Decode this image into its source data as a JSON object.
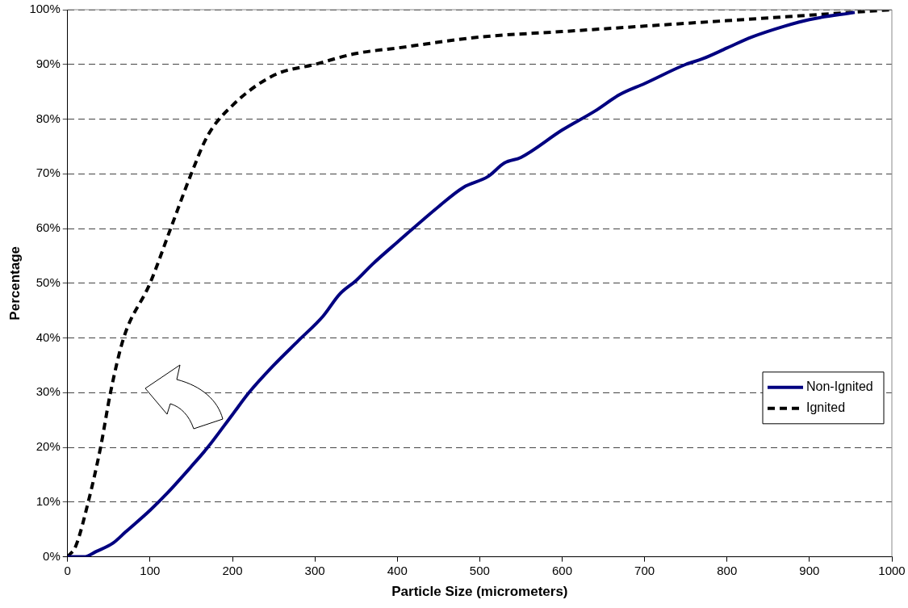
{
  "chart_data": {
    "type": "line",
    "xlabel": "Particle Size (micrometers)",
    "ylabel": "Percentage",
    "xlim": [
      0,
      1000
    ],
    "xticks": [
      0,
      100,
      200,
      300,
      400,
      500,
      600,
      700,
      800,
      900,
      1000
    ],
    "ylim": [
      0,
      100
    ],
    "yticks": [
      {
        "value": 0,
        "label": "0%"
      },
      {
        "value": 10,
        "label": "10%"
      },
      {
        "value": 20,
        "label": "20%"
      },
      {
        "value": 30,
        "label": "30%"
      },
      {
        "value": 40,
        "label": "40%"
      },
      {
        "value": 50,
        "label": "50%"
      },
      {
        "value": 60,
        "label": "60%"
      },
      {
        "value": 70,
        "label": "70%"
      },
      {
        "value": 80,
        "label": "80%"
      },
      {
        "value": 90,
        "label": "90%"
      },
      {
        "value": 100,
        "label": "100%"
      }
    ],
    "grid": "y",
    "legend": "right",
    "marker": "none",
    "series": [
      {
        "name": "Non-Ignited",
        "color": "#000080",
        "line_style": "solid",
        "x": [
          0,
          20,
          35,
          55,
          70,
          100,
          120,
          150,
          170,
          200,
          220,
          250,
          280,
          310,
          330,
          350,
          370,
          400,
          450,
          480,
          510,
          530,
          550,
          600,
          640,
          670,
          700,
          750,
          770,
          800,
          830,
          870,
          900,
          955
        ],
        "values": [
          0,
          0,
          1,
          2.5,
          4.5,
          8.5,
          11.5,
          16.5,
          20,
          26,
          30,
          35,
          39.5,
          44,
          48,
          50.5,
          53.5,
          57.5,
          64,
          67.5,
          69.5,
          72,
          73,
          78,
          81.5,
          84.5,
          86.5,
          90,
          91,
          93,
          95,
          97,
          98.2,
          99.5
        ]
      },
      {
        "name": "Ignited",
        "color": "#000000",
        "line_style": "dashed",
        "x": [
          0,
          10,
          25,
          40,
          52,
          68,
          100,
          125,
          150,
          170,
          200,
          250,
          300,
          350,
          400,
          500,
          600,
          700,
          800,
          900,
          1000
        ],
        "values": [
          0,
          2,
          10,
          20,
          30,
          40,
          50,
          60,
          70,
          77,
          82.5,
          88,
          90,
          92,
          93,
          95,
          96,
          97,
          98,
          99,
          100
        ]
      }
    ]
  }
}
